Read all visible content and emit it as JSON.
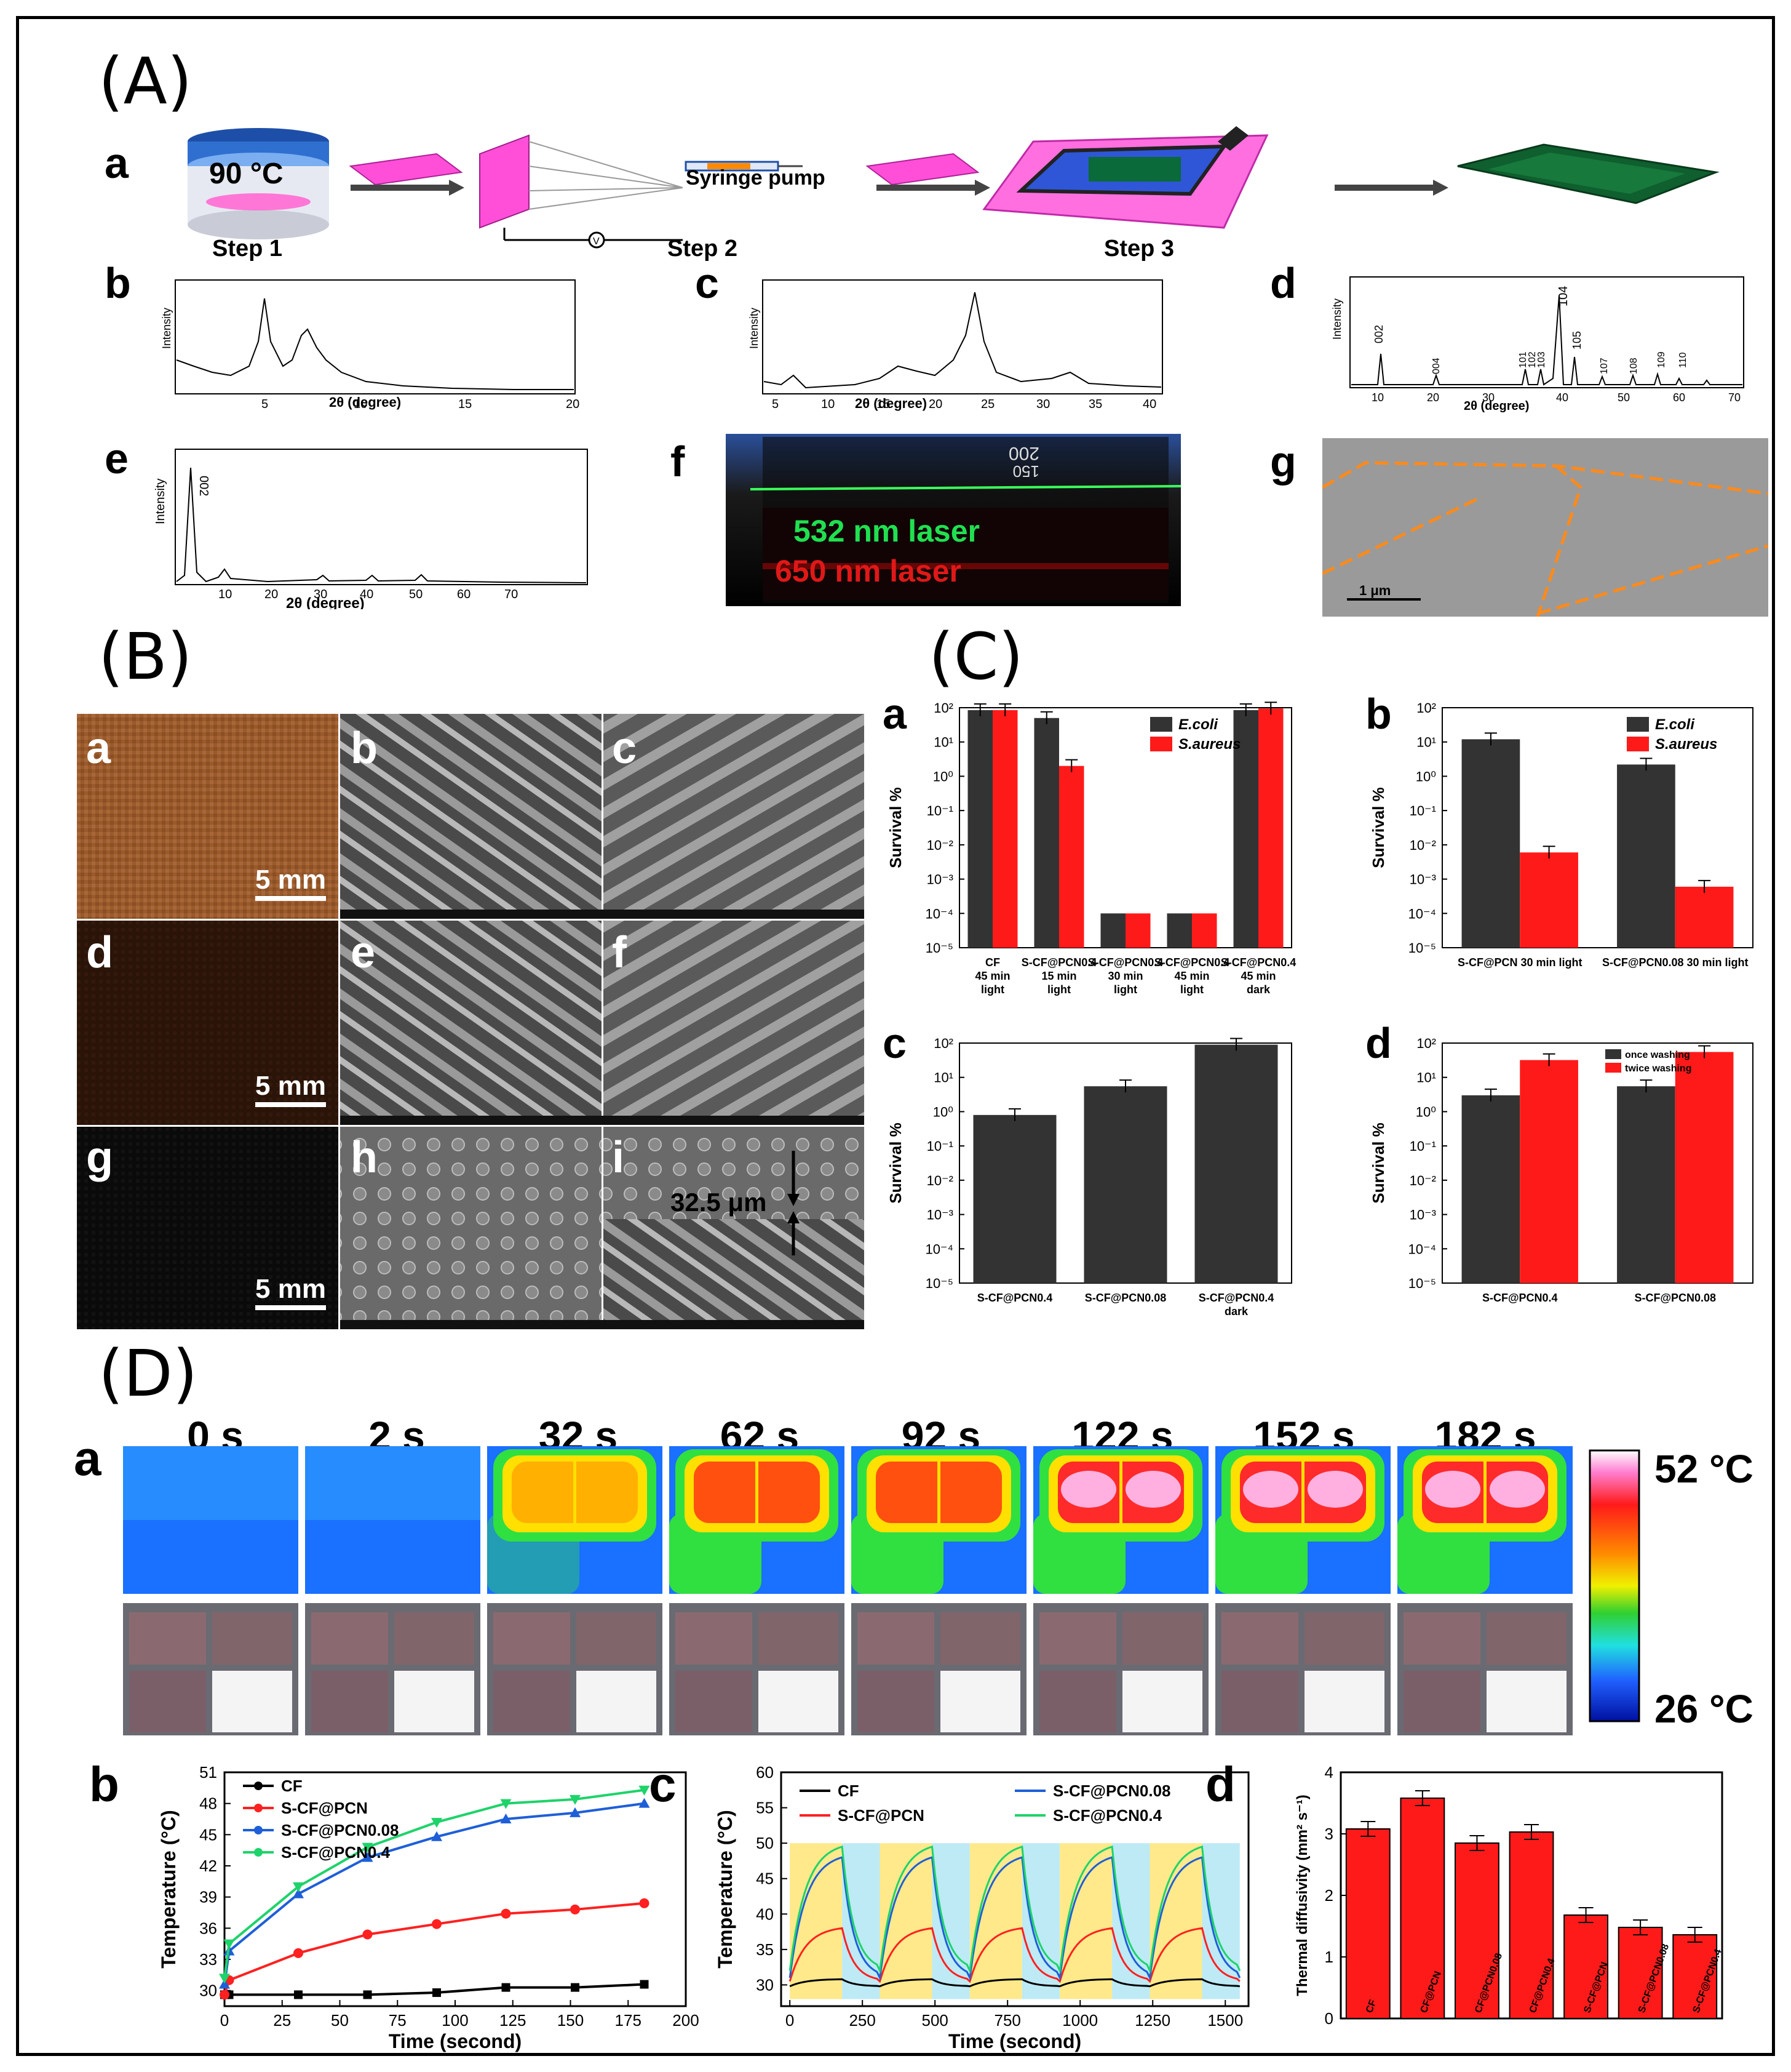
{
  "panels": {
    "A": "(A)",
    "B": "(B)",
    "C": "(C)",
    "D": "(D)"
  },
  "A": {
    "labels": {
      "a": "a",
      "b": "b",
      "c": "c",
      "d": "d",
      "e": "e",
      "f": "f",
      "g": "g"
    },
    "step1": "Step 1",
    "step2": "Step 2",
    "step3": "Step 3",
    "temp": "90 °C",
    "syringe": "Syringe pump",
    "xrd_b": {
      "ylabel": "Intensity",
      "xlabel": "2θ (degree)",
      "ticks": [
        "5",
        "10",
        "15",
        "20"
      ]
    },
    "xrd_c": {
      "ylabel": "Intensity",
      "xlabel": "2θ (degree)",
      "ticks": [
        "5",
        "10",
        "15",
        "20",
        "25",
        "30",
        "35",
        "40"
      ]
    },
    "xrd_d": {
      "ylabel": "Intensity",
      "xlabel": "2θ (degree)",
      "ticks": [
        "10",
        "20",
        "30",
        "40",
        "50",
        "60",
        "70"
      ],
      "peaks": [
        "002",
        "004",
        "101",
        "102",
        "103",
        "104",
        "105",
        "107",
        "108",
        "109",
        "110"
      ]
    },
    "xrd_e": {
      "ylabel": "Intensity",
      "xlabel": "2θ (degree)",
      "ticks": [
        "10",
        "20",
        "30",
        "40",
        "50",
        "60",
        "70"
      ],
      "peak": "002"
    },
    "photo_f": {
      "laser1": "532 nm laser",
      "laser2": "650 nm laser",
      "mark1": "200",
      "mark2": "150"
    },
    "tem_g": {
      "scale": "1 μm"
    }
  },
  "B": {
    "labels": {
      "a": "a",
      "b": "b",
      "c": "c",
      "d": "d",
      "e": "e",
      "f": "f",
      "g": "g",
      "h": "h",
      "i": "i"
    },
    "scale": "5 mm",
    "thickness": "32.5 μm"
  },
  "C": {
    "ylabel": "Survival %",
    "yticks": [
      "10²",
      "10¹",
      "10⁰",
      "10⁻¹",
      "10⁻²",
      "10⁻³",
      "10⁻⁴",
      "10⁻⁵"
    ],
    "legend_a": [
      "E.coli",
      "S.aureus"
    ],
    "legend_d": [
      "once washing",
      "twice washing"
    ],
    "a_cats": [
      "CF\n45 min\nlight",
      "S-CF@PCN0.4\n15 min\nlight",
      "S-CF@PCN0.4\n30 min\nlight",
      "S-CF@PCN0.4\n45 min\nlight",
      "S-CF@PCN0.4\n45 min\ndark"
    ],
    "b_cats": [
      "S-CF@PCN 30 min light",
      "S-CF@PCN0.08 30 min light"
    ],
    "c_cats": [
      "S-CF@PCN0.4",
      "S-CF@PCN0.08",
      "S-CF@PCN0.4\ndark"
    ],
    "d_cats": [
      "S-CF@PCN0.4",
      "S-CF@PCN0.08"
    ]
  },
  "D": {
    "times": [
      "0 s",
      "2 s",
      "32 s",
      "62 s",
      "92 s",
      "122 s",
      "152 s",
      "182 s"
    ],
    "scale_max": "52 °C",
    "scale_min": "26 °C",
    "legend_b": [
      "CF",
      "S-CF@PCN",
      "S-CF@PCN0.08",
      "S-CF@PCN0.4"
    ]
  },
  "colors": {
    "ecoli": "#333333",
    "saureus": "#ff1a1a",
    "cf": "#000000",
    "pcn": "#ff2020",
    "pcn008": "#1e5fd8",
    "pcn04": "#1ed36a",
    "bar_d": "#ff1a1a"
  },
  "chart_data": [
    {
      "id": "C-a",
      "type": "bar",
      "title": "",
      "ylabel": "Survival %",
      "yscale": "log",
      "ylim": [
        1e-05,
        100
      ],
      "categories": [
        "CF 45 min light",
        "S-CF@PCN0.4 15 min light",
        "S-CF@PCN0.4 30 min light",
        "S-CF@PCN0.4 45 min light",
        "S-CF@PCN0.4 45 min dark"
      ],
      "series": [
        {
          "name": "E.coli",
          "values": [
            85,
            50,
            0.0001,
            0.0001,
            85
          ]
        },
        {
          "name": "S.aureus",
          "values": [
            85,
            2,
            0.0001,
            0.0001,
            95
          ]
        }
      ]
    },
    {
      "id": "C-b",
      "type": "bar",
      "ylabel": "Survival %",
      "yscale": "log",
      "ylim": [
        1e-05,
        100
      ],
      "categories": [
        "S-CF@PCN 30 min light",
        "S-CF@PCN0.08 30 min light"
      ],
      "series": [
        {
          "name": "E.coli",
          "values": [
            12,
            2.2
          ]
        },
        {
          "name": "S.aureus",
          "values": [
            0.006,
            0.0006
          ]
        }
      ]
    },
    {
      "id": "C-c",
      "type": "bar",
      "ylabel": "Survival %",
      "yscale": "log",
      "ylim": [
        1e-05,
        100
      ],
      "categories": [
        "S-CF@PCN0.4",
        "S-CF@PCN0.08",
        "S-CF@PCN0.4 dark"
      ],
      "series": [
        {
          "name": "",
          "values": [
            0.8,
            5.5,
            90
          ]
        }
      ]
    },
    {
      "id": "C-d",
      "type": "bar",
      "ylabel": "Survival %",
      "yscale": "log",
      "ylim": [
        1e-05,
        100
      ],
      "categories": [
        "S-CF@PCN0.4",
        "S-CF@PCN0.08"
      ],
      "series": [
        {
          "name": "once washing",
          "values": [
            3,
            5.5
          ]
        },
        {
          "name": "twice washing",
          "values": [
            32,
            55
          ]
        }
      ]
    },
    {
      "id": "D-b",
      "type": "line",
      "xlabel": "Time (second)",
      "ylabel": "Temperature (°C)",
      "xlim": [
        0,
        200
      ],
      "ylim": [
        28.5,
        51
      ],
      "xticks": [
        0,
        25,
        50,
        75,
        100,
        125,
        150,
        175,
        200
      ],
      "yticks": [
        30,
        33,
        36,
        39,
        42,
        45,
        48,
        51
      ],
      "x": [
        0,
        2,
        32,
        62,
        92,
        122,
        152,
        182
      ],
      "series": [
        {
          "name": "CF",
          "values": [
            29.6,
            29.6,
            29.6,
            29.6,
            29.8,
            30.3,
            30.3,
            30.6
          ]
        },
        {
          "name": "S-CF@PCN",
          "values": [
            29.6,
            31.0,
            33.6,
            35.4,
            36.4,
            37.4,
            37.8,
            38.4
          ]
        },
        {
          "name": "S-CF@PCN0.08",
          "values": [
            30.6,
            33.8,
            39.3,
            42.8,
            44.8,
            46.5,
            47.1,
            48.0
          ]
        },
        {
          "name": "S-CF@PCN0.4",
          "values": [
            31.2,
            34.5,
            40.0,
            43.8,
            46.2,
            48.0,
            48.4,
            49.3
          ]
        }
      ]
    },
    {
      "id": "D-c",
      "type": "line",
      "xlabel": "Time (second)",
      "ylabel": "Temperature (°C)",
      "xlim": [
        -30,
        1580
      ],
      "ylim": [
        27,
        60
      ],
      "xticks": [
        0,
        250,
        500,
        750,
        1000,
        1250,
        1500
      ],
      "yticks": [
        30,
        35,
        40,
        45,
        50,
        55,
        60
      ],
      "cycle_period": 310,
      "heat_time": 180,
      "series": [
        {
          "name": "CF",
          "peak": 30.8,
          "base": 29.8
        },
        {
          "name": "S-CF@PCN",
          "peak": 38,
          "base": 30.5
        },
        {
          "name": "S-CF@PCN0.08",
          "peak": 48,
          "base": 31
        },
        {
          "name": "S-CF@PCN0.4",
          "peak": 49.5,
          "base": 32
        }
      ]
    },
    {
      "id": "D-d",
      "type": "bar",
      "ylabel": "Thermal diffusivity (mm² s⁻¹)",
      "ylim": [
        0,
        4
      ],
      "yticks": [
        0,
        1,
        2,
        3,
        4
      ],
      "categories": [
        "CF",
        "CF@PCN",
        "CF@PCN0.08",
        "CF@PCN0.4",
        "S-CF@PCN",
        "S-CF@PCN0.08",
        "S-CF@PCN0.4"
      ],
      "values": [
        3.08,
        3.58,
        2.85,
        3.03,
        1.68,
        1.48,
        1.36
      ]
    }
  ]
}
